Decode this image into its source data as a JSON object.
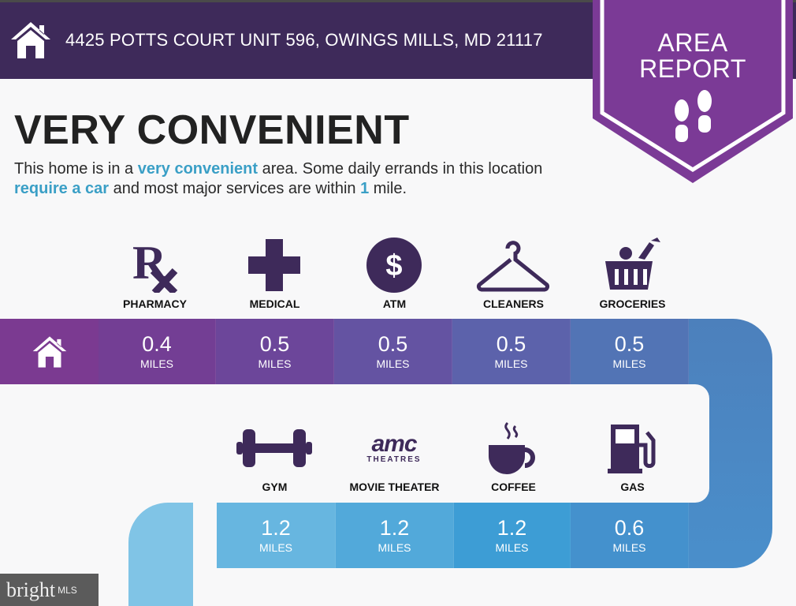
{
  "header": {
    "address": "4425 POTTS COURT UNIT 596, OWINGS MILLS, MD 21117",
    "icon": "home-icon"
  },
  "badge": {
    "line1": "AREA",
    "line2": "REPORT",
    "icon": "footprints-icon",
    "color": "#7b3a96"
  },
  "title": "VERY CONVENIENT",
  "description": {
    "p1": "This home is in a ",
    "h1": "very convenient",
    "p2": " area. Some daily errands in this location ",
    "h2": "require a car",
    "p3": " and most major services are within ",
    "h3": "1",
    "p4": " mile."
  },
  "row1": [
    {
      "label": "PHARMACY",
      "value": "0.4",
      "unit": "MILES",
      "icon": "rx-icon"
    },
    {
      "label": "MEDICAL",
      "value": "0.5",
      "unit": "MILES",
      "icon": "medical-cross-icon"
    },
    {
      "label": "ATM",
      "value": "0.5",
      "unit": "MILES",
      "icon": "dollar-icon"
    },
    {
      "label": "CLEANERS",
      "value": "0.5",
      "unit": "MILES",
      "icon": "hanger-icon"
    },
    {
      "label": "GROCERIES",
      "value": "0.5",
      "unit": "MILES",
      "icon": "grocery-basket-icon"
    }
  ],
  "row2": [
    {
      "label": "GYM",
      "value": "1.2",
      "unit": "MILES",
      "icon": "dumbbell-icon"
    },
    {
      "label": "MOVIE THEATER",
      "value": "1.2",
      "unit": "MILES",
      "icon": "amc-theatres-icon",
      "logo_text": "amc",
      "logo_sub": "THEATRES"
    },
    {
      "label": "COFFEE",
      "value": "1.2",
      "unit": "MILES",
      "icon": "coffee-cup-icon"
    },
    {
      "label": "GAS",
      "value": "0.6",
      "unit": "MILES",
      "icon": "gas-pump-icon"
    }
  ],
  "logo": {
    "text": "bright",
    "sub": "MLS"
  }
}
